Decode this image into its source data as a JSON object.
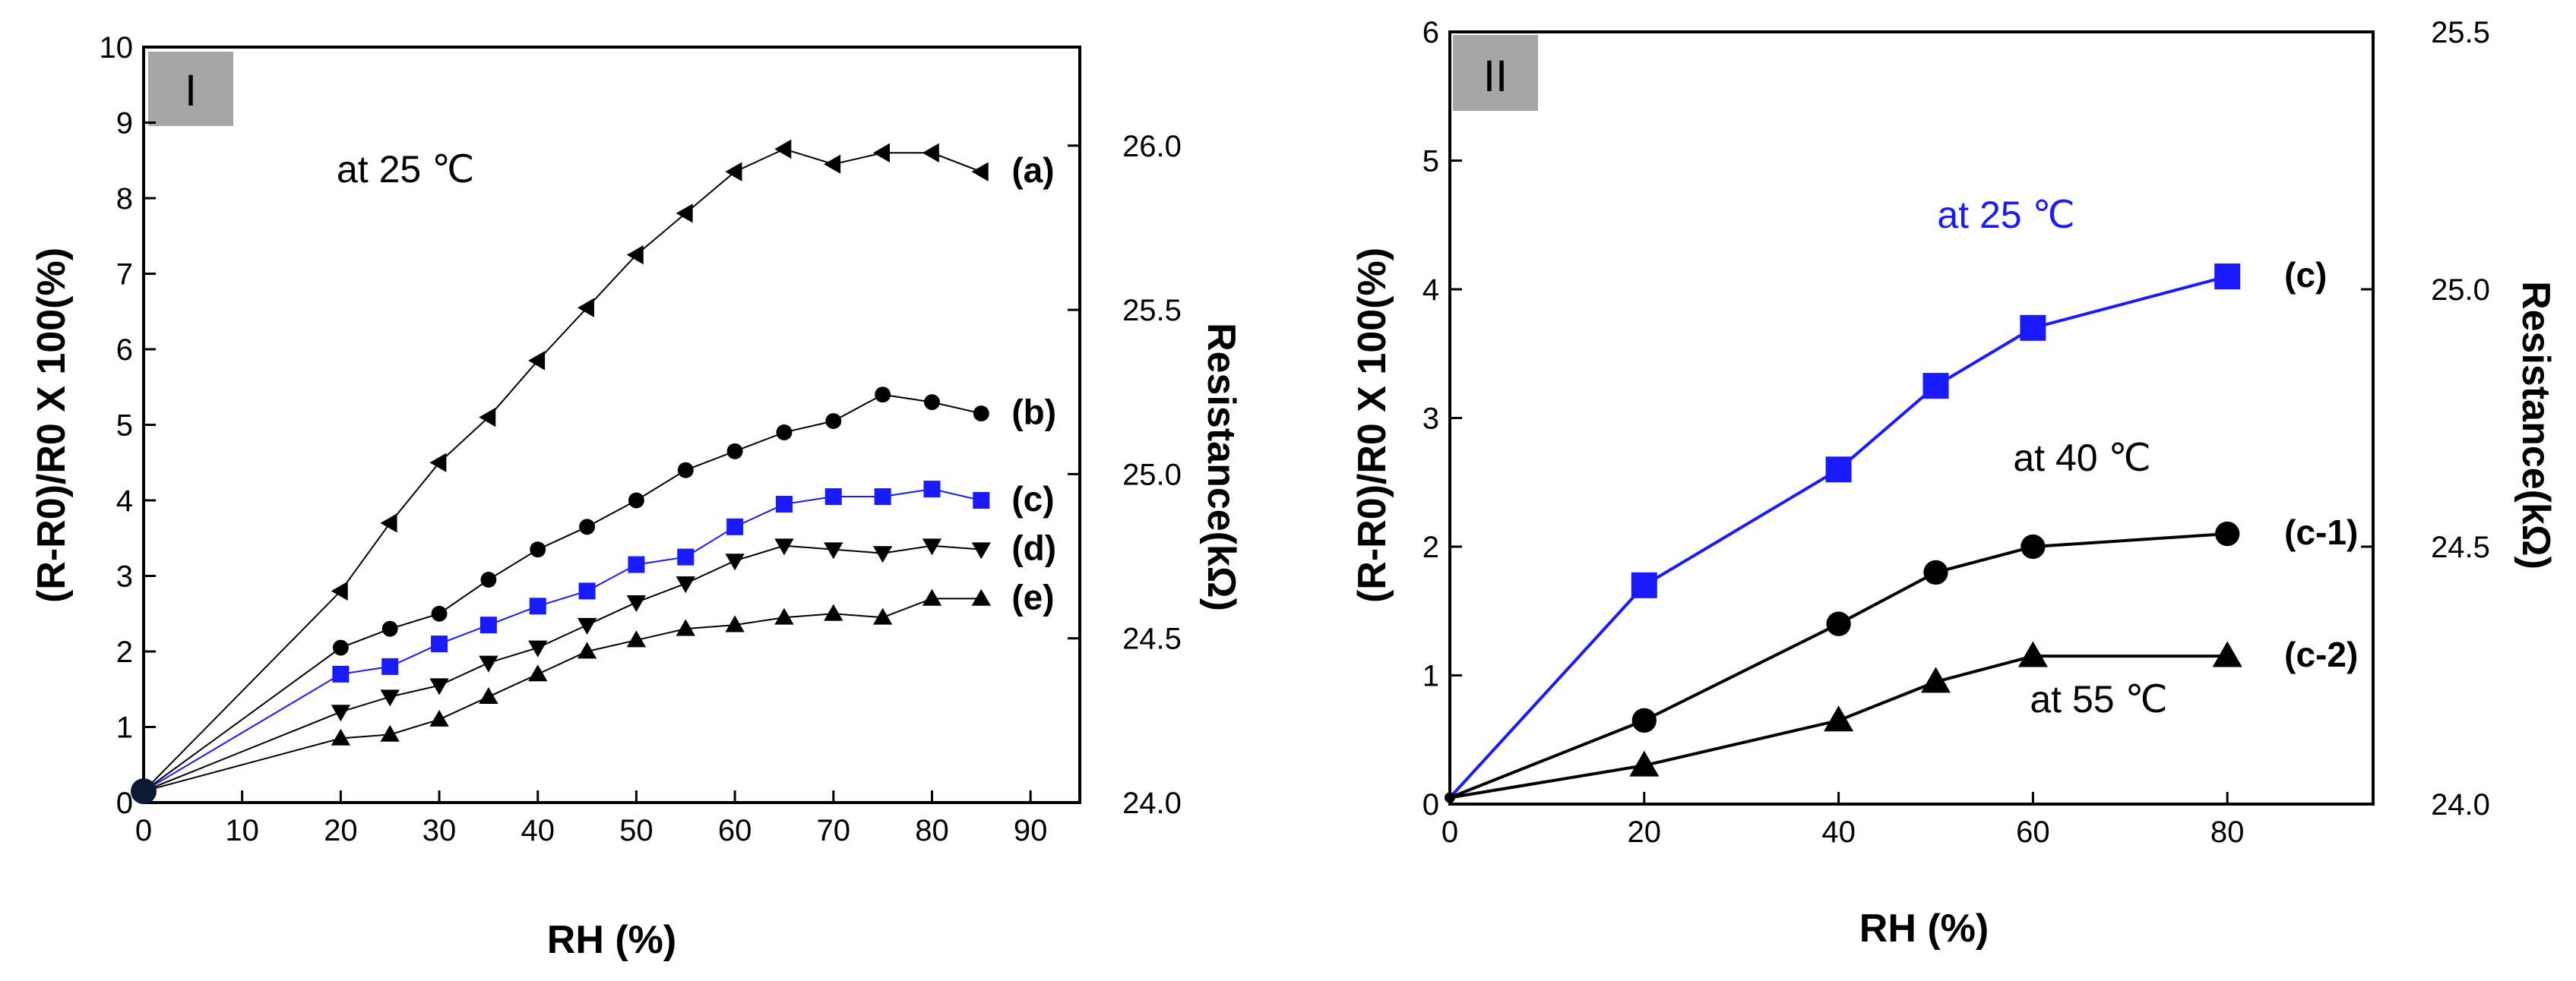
{
  "chart_data": [
    {
      "type": "line",
      "panel_label": "I",
      "annotation": "at 25 ℃",
      "xlabel": "RH (%)",
      "ylabel": "(R-R0)/R0 X 100(%)",
      "y2label": "Resistance(kΩ)",
      "xlim": [
        0,
        95
      ],
      "ylim": [
        0,
        10
      ],
      "y2lim": [
        24.0,
        26.3
      ],
      "xticks": [
        0,
        10,
        20,
        30,
        40,
        50,
        60,
        70,
        80,
        90
      ],
      "yticks": [
        0,
        1,
        2,
        3,
        4,
        5,
        6,
        7,
        8,
        9,
        10
      ],
      "y2ticks": [
        "24.0",
        "24.5",
        "25.0",
        "25.5",
        "26.0"
      ],
      "y2tick_values": [
        24.0,
        24.5,
        25.0,
        25.5,
        26.0
      ],
      "series": [
        {
          "name": "(a)",
          "marker": "triangle-left",
          "color": "#000000",
          "x": [
            0,
            20,
            25,
            30,
            35,
            40,
            45,
            50,
            55,
            60,
            65,
            70,
            75,
            80,
            85
          ],
          "y": [
            0.15,
            2.8,
            3.7,
            4.5,
            5.1,
            5.85,
            6.55,
            7.25,
            7.8,
            8.35,
            8.65,
            8.45,
            8.6,
            8.6,
            8.35
          ]
        },
        {
          "name": "(b)",
          "marker": "circle",
          "color": "#000000",
          "x": [
            0,
            20,
            25,
            30,
            35,
            40,
            45,
            50,
            55,
            60,
            65,
            70,
            75,
            80,
            85
          ],
          "y": [
            0.15,
            2.05,
            2.3,
            2.5,
            2.95,
            3.35,
            3.65,
            4.0,
            4.4,
            4.65,
            4.9,
            5.05,
            5.4,
            5.3,
            5.15
          ]
        },
        {
          "name": "(c)",
          "marker": "square",
          "color": "#1a1aff",
          "x": [
            0,
            20,
            25,
            30,
            35,
            40,
            45,
            50,
            55,
            60,
            65,
            70,
            75,
            80,
            85
          ],
          "y": [
            0.15,
            1.7,
            1.8,
            2.1,
            2.35,
            2.6,
            2.8,
            3.15,
            3.25,
            3.65,
            3.95,
            4.05,
            4.05,
            4.15,
            4.0
          ]
        },
        {
          "name": "(d)",
          "marker": "triangle-down",
          "color": "#000000",
          "x": [
            0,
            20,
            25,
            30,
            35,
            40,
            45,
            50,
            55,
            60,
            65,
            70,
            75,
            80,
            85
          ],
          "y": [
            0.15,
            1.2,
            1.4,
            1.55,
            1.85,
            2.05,
            2.35,
            2.65,
            2.9,
            3.2,
            3.4,
            3.35,
            3.3,
            3.4,
            3.35
          ]
        },
        {
          "name": "(e)",
          "marker": "triangle-up",
          "color": "#000000",
          "x": [
            0,
            20,
            25,
            30,
            35,
            40,
            45,
            50,
            55,
            60,
            65,
            70,
            75,
            80,
            85
          ],
          "y": [
            0.15,
            0.85,
            0.9,
            1.1,
            1.4,
            1.7,
            2.0,
            2.15,
            2.3,
            2.35,
            2.45,
            2.5,
            2.45,
            2.7,
            2.7
          ]
        }
      ]
    },
    {
      "type": "line",
      "panel_label": "II",
      "annotations": [
        "at 25 ℃",
        "at 40 ℃",
        "at 55 ℃"
      ],
      "xlabel": "RH (%)",
      "ylabel": "(R-R0)/R0 X 100(%)",
      "y2label": "Resistance(kΩ)",
      "xlim": [
        0,
        95
      ],
      "ylim": [
        0,
        6
      ],
      "y2lim": [
        24.0,
        25.5
      ],
      "xticks": [
        0,
        20,
        40,
        60,
        80
      ],
      "yticks": [
        0,
        1,
        2,
        3,
        4,
        5,
        6
      ],
      "y2ticks": [
        "24.0",
        "24.5",
        "25.0",
        "25.5"
      ],
      "y2tick_values": [
        24.0,
        24.5,
        25.0,
        25.5
      ],
      "series": [
        {
          "name": "(c)",
          "marker": "square",
          "color": "#1a1aff",
          "x": [
            0,
            20,
            40,
            50,
            60,
            80
          ],
          "y": [
            0.05,
            1.7,
            2.6,
            3.25,
            3.7,
            4.1
          ]
        },
        {
          "name": "(c-1)",
          "marker": "circle",
          "color": "#000000",
          "x": [
            0,
            20,
            40,
            50,
            60,
            80
          ],
          "y": [
            0.05,
            0.65,
            1.4,
            1.8,
            2.0,
            2.1
          ]
        },
        {
          "name": "(c-2)",
          "marker": "triangle-up",
          "color": "#000000",
          "x": [
            0,
            20,
            40,
            50,
            60,
            80
          ],
          "y": [
            0.05,
            0.3,
            0.65,
            0.95,
            1.15,
            1.15
          ]
        }
      ]
    }
  ]
}
